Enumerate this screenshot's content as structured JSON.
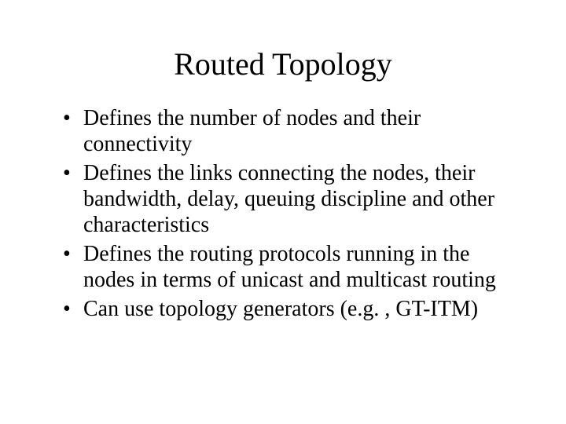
{
  "slide": {
    "title": "Routed Topology",
    "bullets": [
      "Defines the number of nodes and their connectivity",
      "Defines the links connecting the nodes, their bandwidth, delay, queuing discipline and other characteristics",
      "Defines the routing protocols running in the nodes in terms of unicast and multicast routing",
      "Can use topology generators (e.g. , GT-ITM)"
    ],
    "title_fontsize": 40,
    "body_fontsize": 28,
    "background_color": "#ffffff",
    "text_color": "#000000",
    "font_family": "Times New Roman"
  }
}
